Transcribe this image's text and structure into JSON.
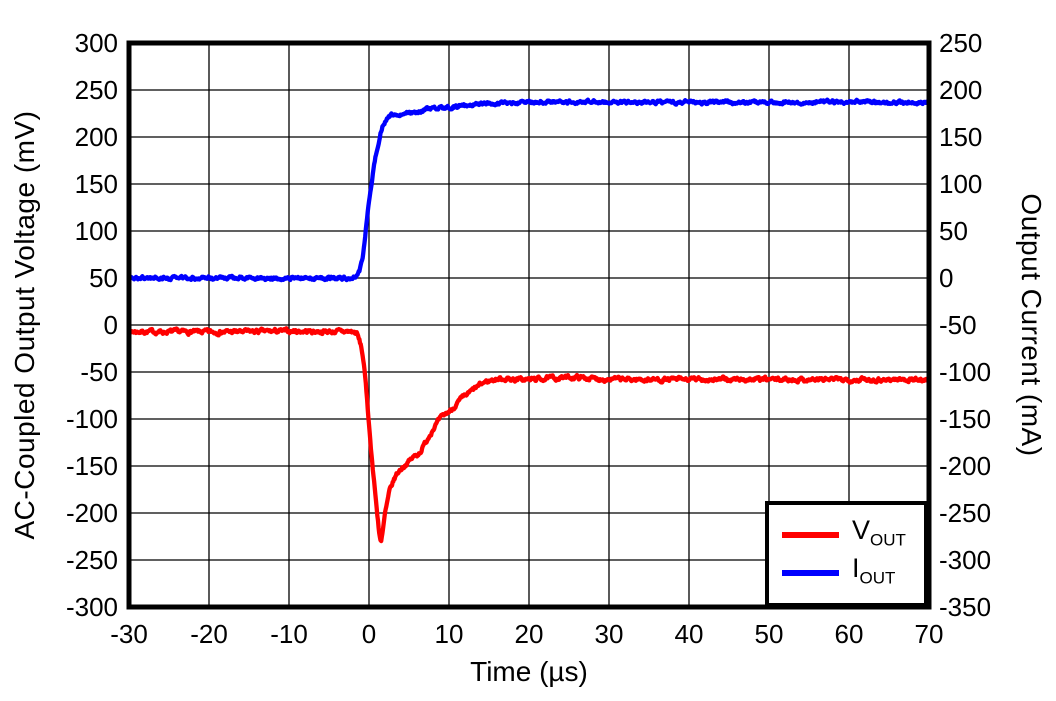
{
  "chart_data": {
    "type": "line",
    "title": "",
    "xlabel": "Time (µs)",
    "ylabel_left": "AC-Coupled Output Voltage (mV)",
    "ylabel_right": "Output Current (mA)",
    "xlim": [
      -30,
      70
    ],
    "ylim_left": [
      -300,
      300
    ],
    "ylim_right": [
      -350,
      250
    ],
    "xticks": [
      -30,
      -20,
      -10,
      0,
      10,
      20,
      30,
      40,
      50,
      60,
      70
    ],
    "yticks_left": [
      300,
      250,
      200,
      150,
      100,
      50,
      0,
      -50,
      -100,
      -150,
      -200,
      -250,
      -300
    ],
    "yticks_right": [
      250,
      200,
      150,
      100,
      50,
      0,
      -50,
      -100,
      -150,
      -200,
      -250,
      -300,
      -350
    ],
    "grid": true,
    "grid_color": "#000000",
    "frame_color": "#000000",
    "legend_position": "bottom-right",
    "legend": {
      "items": [
        {
          "main": "V",
          "sub": "OUT",
          "color": "#ff0000"
        },
        {
          "main": "I",
          "sub": "OUT",
          "color": "#0000ff"
        }
      ]
    },
    "series": [
      {
        "name": "V_OUT",
        "axis": "left",
        "unit": "mV",
        "color": "#ff0000",
        "noise_amp": 1.7,
        "points": [
          [
            -30,
            -7
          ],
          [
            -20,
            -7.5
          ],
          [
            -10,
            -6.5
          ],
          [
            -5,
            -7
          ],
          [
            -2.2,
            -7
          ],
          [
            -1.5,
            -9
          ],
          [
            -1,
            -22
          ],
          [
            -0.7,
            -37
          ],
          [
            -0.3,
            -73
          ],
          [
            0.1,
            -116
          ],
          [
            0.5,
            -155
          ],
          [
            0.95,
            -194
          ],
          [
            1.3,
            -222
          ],
          [
            1.5,
            -232
          ],
          [
            1.7,
            -222
          ],
          [
            2,
            -201
          ],
          [
            2.6,
            -176
          ],
          [
            3.1,
            -165
          ],
          [
            3.5,
            -158
          ],
          [
            4,
            -153
          ],
          [
            4.5,
            -149
          ],
          [
            5,
            -145
          ],
          [
            5.5,
            -141
          ],
          [
            6,
            -138
          ],
          [
            6.4,
            -135
          ],
          [
            6.8,
            -129
          ],
          [
            7.2,
            -123
          ],
          [
            7.7,
            -115
          ],
          [
            8.1,
            -109
          ],
          [
            8.9,
            -100
          ],
          [
            9.5,
            -95
          ],
          [
            10.2,
            -91
          ],
          [
            11.4,
            -80
          ],
          [
            12.7,
            -71
          ],
          [
            13.5,
            -66
          ],
          [
            14.4,
            -61
          ],
          [
            15.2,
            -59
          ],
          [
            16,
            -57.5
          ],
          [
            17,
            -57
          ],
          [
            18,
            -58
          ],
          [
            20,
            -58
          ],
          [
            23,
            -56.5
          ],
          [
            26,
            -55.5
          ],
          [
            28,
            -57
          ],
          [
            32,
            -58
          ],
          [
            40,
            -58
          ],
          [
            50,
            -58
          ],
          [
            60,
            -58
          ],
          [
            70,
            -58
          ]
        ]
      },
      {
        "name": "I_OUT",
        "axis": "right",
        "unit": "mA",
        "color": "#0000ff",
        "noise_amp": 1.4,
        "points": [
          [
            -30,
            0
          ],
          [
            -20,
            0
          ],
          [
            -10,
            0
          ],
          [
            -5,
            0
          ],
          [
            -2,
            0
          ],
          [
            -1.5,
            1
          ],
          [
            -1.2,
            6
          ],
          [
            -1,
            15
          ],
          [
            -0.7,
            27
          ],
          [
            -0.3,
            59
          ],
          [
            0.1,
            87
          ],
          [
            0.5,
            112
          ],
          [
            0.8,
            128
          ],
          [
            1,
            137
          ],
          [
            1.4,
            153
          ],
          [
            1.8,
            164
          ],
          [
            2.1,
            168
          ],
          [
            2.4,
            171
          ],
          [
            3,
            173
          ],
          [
            3.5,
            174
          ],
          [
            4.5,
            175.5
          ],
          [
            5.5,
            177
          ],
          [
            6.5,
            178
          ],
          [
            7.6,
            179.5
          ],
          [
            9,
            180.5
          ],
          [
            10,
            181
          ],
          [
            11,
            182
          ],
          [
            12.5,
            183.5
          ],
          [
            14,
            185
          ],
          [
            16,
            186
          ],
          [
            18,
            186.5
          ],
          [
            20,
            187
          ],
          [
            25,
            187.5
          ],
          [
            30,
            187
          ],
          [
            40,
            187
          ],
          [
            50,
            187
          ],
          [
            60,
            187
          ],
          [
            70,
            186.5
          ]
        ]
      }
    ]
  }
}
